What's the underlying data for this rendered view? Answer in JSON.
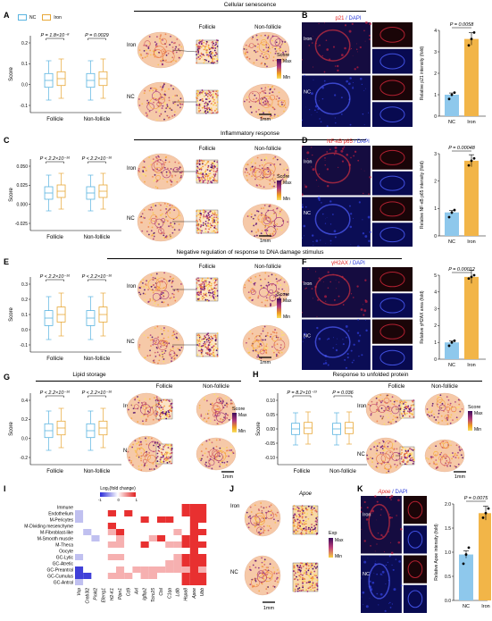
{
  "panels": {
    "A": "A",
    "B": "B",
    "C": "C",
    "D": "D",
    "E": "E",
    "F": "F",
    "G": "G",
    "H": "H",
    "I": "I",
    "J": "J",
    "K": "K"
  },
  "sections": {
    "senescence": "Cellular senescence",
    "inflammatory": "Inflammatory response",
    "dna": "Negative regulation of response to DNA damage stimulus",
    "lipid": "Lipid storage",
    "unfolded": "Response to unfolded protein"
  },
  "legend": {
    "nc": "NC",
    "iron": "Iron"
  },
  "colors": {
    "nc": "#5ab4e0",
    "iron": "#e8a838",
    "bar_nc": "#8ec8ec",
    "bar_iron": "#f2b548"
  },
  "common": {
    "follicle": "Follicle",
    "nonfollicle": "Non-follicle",
    "score": "Score",
    "iron": "Iron",
    "nc": "NC",
    "scale": "1mm",
    "max": "Max",
    "min": "Min",
    "exp": "Exp",
    "dapi": "DAPI"
  },
  "A": {
    "p1": "P = 1.8×10⁻⁸",
    "p2": "P = 0.0029",
    "yticks": [
      "0.2",
      "0.1",
      "0.0",
      "-0.1"
    ]
  },
  "B": {
    "stain": "p21",
    "p": "P = 0.0058",
    "ylabel": "Relative p21 intensity (fold)",
    "yticks": [
      "4",
      "3",
      "2",
      "1",
      "0"
    ]
  },
  "C": {
    "p1": "P < 2.2×10⁻¹⁶",
    "p2": "P < 2.2×10⁻¹⁶",
    "yticks": [
      "0.050",
      "0.025",
      "0.000",
      "-0.025"
    ]
  },
  "D": {
    "stain": "NF-κB p65",
    "p": "P = 0.00048",
    "ylabel": "Relative NF-κB p65 intensity (fold)",
    "yticks": [
      "3",
      "2",
      "1",
      "0"
    ]
  },
  "E": {
    "p1": "P < 2.2×10⁻¹⁶",
    "p2": "P < 2.2×10⁻¹⁶",
    "yticks": [
      "0.3",
      "0.2",
      "0.1",
      "0.0",
      "-0.1"
    ]
  },
  "F": {
    "stain": "γH2AX",
    "p": "P = 0.00012",
    "ylabel": "Relative γH2AX area (fold)",
    "yticks": [
      "5",
      "4",
      "3",
      "2",
      "1",
      "0"
    ]
  },
  "G": {
    "p1": "P < 2.2×10⁻¹⁶",
    "p2": "P < 2.2×10⁻¹⁶",
    "yticks": [
      "0.4",
      "0.2",
      "0.0",
      "-0.2"
    ]
  },
  "H": {
    "p1": "P = 8.2×10⁻¹³",
    "p2": "P = 0.036",
    "yticks": [
      "0.10",
      "0.05",
      "0.00",
      "-0.05",
      "-0.10"
    ]
  },
  "I": {
    "legend_title": "Log₂(fold change)",
    "legend_ticks": [
      "-1",
      "0",
      "1"
    ],
    "rows": [
      "Immune",
      "Endothelium",
      "M-Pericytes",
      "M-Dividing mesenchyme",
      "M-Fibroblast-like",
      "M-Smooth muscle",
      "M-Theca",
      "Oocyte",
      "GC-Lytic",
      "GC-Atretic",
      "GC-Preantral",
      "GC-Cumulus",
      "GC-Antral"
    ],
    "cols": [
      "Vcp",
      "Creb3l2",
      "Pinkl2",
      "Eferrg1",
      "H2-K1",
      "Ptpn1",
      "Cd9",
      "Axl",
      "Igfbp2",
      "Tcirc25",
      "Ctsl",
      "C1qa",
      "Ldlb",
      "Hspa8",
      "Apoe",
      "Ubb"
    ]
  },
  "J": {
    "gene": "Apoe"
  },
  "K": {
    "stain": "Apoe",
    "p": "P = 0.0075",
    "ylabel": "Relative Apoe intensity (fold)",
    "yticks": [
      "2.0",
      "1.5",
      "1.0",
      "0.5",
      "0.0"
    ]
  }
}
